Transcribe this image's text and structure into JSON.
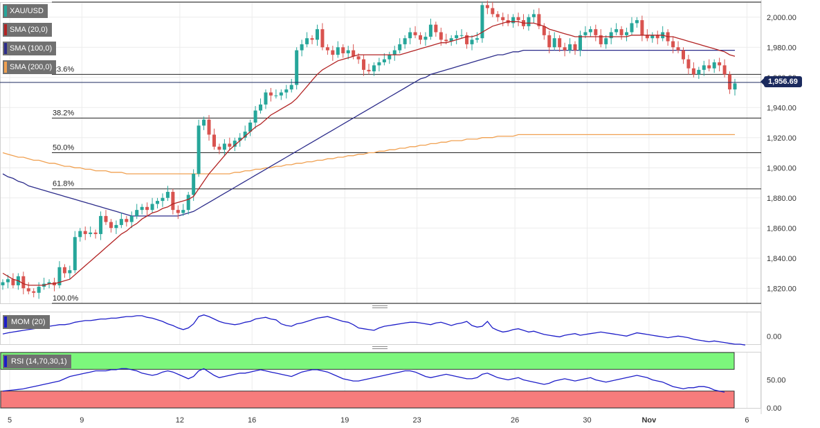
{
  "chart_data": {
    "type": "candlestick",
    "symbol": "XAU/USD",
    "y_range": [
      1810,
      2010
    ],
    "y_ticks": [
      "2,000.00",
      "1,980.00",
      "1,960.00",
      "1,940.00",
      "1,920.00",
      "1,900.00",
      "1,880.00",
      "1,860.00",
      "1,840.00",
      "1,820.00"
    ],
    "y_tick_values": [
      2000,
      1980,
      1960,
      1940,
      1920,
      1900,
      1880,
      1860,
      1840,
      1820
    ],
    "x_ticks": [
      {
        "label": "5",
        "i": 0
      },
      {
        "label": "9",
        "i": 14
      },
      {
        "label": "12",
        "i": 33
      },
      {
        "label": "16",
        "i": 47
      },
      {
        "label": "19",
        "i": 65
      },
      {
        "label": "23",
        "i": 79
      },
      {
        "label": "26",
        "i": 98
      },
      {
        "label": "30",
        "i": 112
      },
      {
        "label": "Nov",
        "i": 124
      },
      {
        "label": "6",
        "i": 143
      },
      {
        "label": "9",
        "i": 165
      }
    ],
    "last_price": 1956.69,
    "last_price_label": "1,956.69",
    "series_close": [
      1824,
      1826,
      1822,
      1828,
      1820,
      1818,
      1817,
      1821,
      1823,
      1824,
      1822,
      1834,
      1830,
      1832,
      1854,
      1858,
      1856,
      1857,
      1856,
      1868,
      1864,
      1860,
      1862,
      1866,
      1864,
      1868,
      1872,
      1874,
      1872,
      1876,
      1878,
      1880,
      1884,
      1872,
      1870,
      1872,
      1882,
      1896,
      1928,
      1932,
      1922,
      1914,
      1912,
      1916,
      1914,
      1918,
      1920,
      1924,
      1930,
      1938,
      1942,
      1950,
      1948,
      1948,
      1950,
      1952,
      1955,
      1978,
      1982,
      1986,
      1985,
      1992,
      1980,
      1978,
      1975,
      1980,
      1976,
      1978,
      1974,
      1972,
      1965,
      1964,
      1968,
      1970,
      1972,
      1975,
      1978,
      1982,
      1986,
      1990,
      1988,
      1985,
      1987,
      1995,
      1990,
      1985,
      1984,
      1986,
      1988,
      1988,
      1982,
      1985,
      1986,
      2008,
      2006,
      2002,
      2000,
      1998,
      1996,
      2000,
      1998,
      1994,
      2000,
      2002,
      1994,
      1988,
      1980,
      1986,
      1980,
      1978,
      1982,
      1978,
      1988,
      1990,
      1992,
      1988,
      1982,
      1986,
      1990,
      1992,
      1988,
      1990,
      1996,
      1998,
      1988,
      1986,
      1988,
      1986,
      1990,
      1984,
      1980,
      1978,
      1972,
      1966,
      1962,
      1965,
      1968,
      1966,
      1970,
      1968,
      1962,
      1952,
      1956
    ],
    "sma20": [
      1830,
      1828,
      1826,
      1825,
      1823,
      1822,
      1822,
      1822,
      1822,
      1823,
      1823,
      1824,
      1825,
      1826,
      1829,
      1832,
      1835,
      1838,
      1841,
      1844,
      1847,
      1850,
      1853,
      1856,
      1858,
      1861,
      1863,
      1866,
      1868,
      1870,
      1871,
      1873,
      1874,
      1876,
      1877,
      1878,
      1879,
      1881,
      1886,
      1891,
      1896,
      1900,
      1904,
      1908,
      1912,
      1915,
      1918,
      1921,
      1924,
      1927,
      1929,
      1932,
      1935,
      1937,
      1939,
      1941,
      1943,
      1946,
      1950,
      1954,
      1958,
      1962,
      1965,
      1967,
      1969,
      1971,
      1972,
      1973,
      1974,
      1975,
      1975,
      1975,
      1975,
      1975,
      1975,
      1975,
      1975,
      1975,
      1976,
      1977,
      1978,
      1979,
      1980,
      1981,
      1982,
      1983,
      1983,
      1984,
      1985,
      1986,
      1987,
      1987,
      1988,
      1990,
      1992,
      1994,
      1995,
      1996,
      1997,
      1997,
      1997,
      1996,
      1996,
      1996,
      1995,
      1994,
      1992,
      1991,
      1990,
      1989,
      1988,
      1987,
      1987,
      1987,
      1987,
      1987,
      1987,
      1987,
      1987,
      1987,
      1987,
      1987,
      1988,
      1988,
      1988,
      1988,
      1988,
      1988,
      1988,
      1987,
      1987,
      1986,
      1985,
      1984,
      1983,
      1982,
      1981,
      1980,
      1979,
      1978,
      1977,
      1975,
      1974
    ],
    "sma100": [
      1896,
      1894,
      1893,
      1891,
      1890,
      1888,
      1887,
      1886,
      1885,
      1884,
      1883,
      1882,
      1881,
      1880,
      1879,
      1878,
      1877,
      1876,
      1875,
      1874,
      1873,
      1872,
      1871,
      1870,
      1869,
      1868,
      1868,
      1868,
      1868,
      1868,
      1868,
      1868,
      1868,
      1868,
      1868,
      1869,
      1870,
      1871,
      1873,
      1875,
      1877,
      1879,
      1881,
      1883,
      1885,
      1887,
      1889,
      1891,
      1893,
      1895,
      1897,
      1899,
      1901,
      1903,
      1905,
      1907,
      1909,
      1911,
      1913,
      1915,
      1917,
      1919,
      1921,
      1923,
      1925,
      1927,
      1929,
      1931,
      1933,
      1935,
      1937,
      1939,
      1941,
      1943,
      1945,
      1947,
      1949,
      1951,
      1953,
      1955,
      1957,
      1959,
      1960,
      1962,
      1963,
      1964,
      1965,
      1966,
      1967,
      1968,
      1969,
      1970,
      1971,
      1972,
      1973,
      1974,
      1975,
      1975,
      1976,
      1977,
      1977,
      1978,
      1978,
      1978,
      1978,
      1978,
      1978,
      1978,
      1978,
      1978,
      1978,
      1978,
      1978,
      1978,
      1978,
      1978,
      1978,
      1978,
      1978,
      1978,
      1978,
      1978,
      1978,
      1978,
      1978,
      1978,
      1978,
      1978,
      1978,
      1978,
      1978,
      1978,
      1978,
      1978,
      1978,
      1978,
      1978,
      1978,
      1978,
      1978,
      1978,
      1978,
      1978
    ],
    "sma200": [
      1910,
      1909,
      1908,
      1907,
      1907,
      1906,
      1905,
      1905,
      1904,
      1903,
      1903,
      1902,
      1901,
      1901,
      1900,
      1900,
      1899,
      1899,
      1898,
      1898,
      1898,
      1897,
      1897,
      1897,
      1896,
      1896,
      1896,
      1896,
      1896,
      1896,
      1896,
      1896,
      1896,
      1896,
      1896,
      1896,
      1896,
      1896,
      1896,
      1896,
      1896,
      1896,
      1896,
      1896,
      1896,
      1897,
      1897,
      1898,
      1898,
      1899,
      1899,
      1900,
      1900,
      1901,
      1901,
      1902,
      1902,
      1903,
      1903,
      1904,
      1904,
      1905,
      1905,
      1906,
      1906,
      1907,
      1907,
      1908,
      1908,
      1909,
      1909,
      1910,
      1910,
      1911,
      1911,
      1912,
      1912,
      1913,
      1913,
      1914,
      1914,
      1915,
      1915,
      1916,
      1916,
      1917,
      1917,
      1918,
      1918,
      1918,
      1919,
      1919,
      1919,
      1920,
      1920,
      1920,
      1921,
      1921,
      1921,
      1921,
      1922,
      1922,
      1922,
      1922,
      1922,
      1922,
      1922,
      1922,
      1922,
      1922,
      1922,
      1922,
      1922,
      1922,
      1922,
      1922,
      1922,
      1922,
      1922,
      1922,
      1922,
      1922,
      1922,
      1922,
      1922,
      1922,
      1922,
      1922,
      1922,
      1922,
      1922,
      1922,
      1922,
      1922,
      1922,
      1922,
      1922,
      1922,
      1922,
      1922,
      1922,
      1922,
      1922
    ],
    "fibonacci": [
      {
        "label": "23.6%",
        "value": 1962
      },
      {
        "label": "38.2%",
        "value": 1933
      },
      {
        "label": "50.0%",
        "value": 1910
      },
      {
        "label": "61.8%",
        "value": 1886
      },
      {
        "label": "100.0%",
        "value": 1810
      }
    ],
    "legend": [
      {
        "label": "XAU/USD",
        "color": "#26a69a"
      },
      {
        "label": "SMA (20,0)",
        "color": "#b22222"
      },
      {
        "label": "SMA (100,0)",
        "color": "#2b2b8a"
      },
      {
        "label": "SMA (200,0)",
        "color": "#f0a050"
      }
    ],
    "mom": {
      "label": "MOM (20)",
      "tick_label": "0.00",
      "y_range": [
        -20,
        60
      ],
      "values": [
        5,
        8,
        10,
        12,
        14,
        16,
        18,
        20,
        22,
        24,
        26,
        28,
        28,
        30,
        34,
        36,
        38,
        38,
        40,
        42,
        42,
        44,
        44,
        46,
        48,
        48,
        50,
        50,
        46,
        44,
        40,
        36,
        30,
        26,
        20,
        16,
        20,
        30,
        48,
        52,
        48,
        42,
        36,
        32,
        30,
        28,
        30,
        34,
        36,
        42,
        44,
        46,
        42,
        40,
        30,
        26,
        24,
        30,
        32,
        36,
        40,
        44,
        46,
        48,
        44,
        40,
        36,
        34,
        28,
        20,
        18,
        16,
        14,
        20,
        24,
        26,
        28,
        30,
        32,
        34,
        34,
        32,
        30,
        28,
        32,
        34,
        30,
        26,
        30,
        32,
        36,
        26,
        22,
        24,
        36,
        20,
        14,
        10,
        12,
        16,
        18,
        14,
        10,
        12,
        8,
        4,
        2,
        0,
        -2,
        2,
        4,
        6,
        2,
        4,
        6,
        8,
        10,
        8,
        6,
        4,
        2,
        0,
        4,
        8,
        6,
        4,
        2,
        0,
        -2,
        -4,
        -2,
        0,
        -2,
        -4,
        -8,
        -10,
        -12,
        -14,
        -12,
        -14,
        -16,
        -18,
        -20,
        -20,
        -22
      ]
    },
    "rsi": {
      "label": "RSI (14,70,30,1)",
      "tick_labels": [
        "50.00",
        "0.00"
      ],
      "tick_values": [
        50,
        0
      ],
      "levels": {
        "overbought": 70,
        "oversold": 30
      },
      "values": [
        30,
        31,
        32,
        33,
        34,
        36,
        38,
        40,
        42,
        44,
        46,
        48,
        52,
        56,
        58,
        60,
        62,
        64,
        66,
        66,
        66,
        68,
        68,
        70,
        70,
        68,
        66,
        62,
        60,
        58,
        60,
        64,
        66,
        64,
        60,
        56,
        52,
        56,
        66,
        70,
        64,
        58,
        54,
        56,
        58,
        60,
        62,
        62,
        64,
        66,
        68,
        66,
        64,
        62,
        60,
        58,
        56,
        60,
        64,
        66,
        68,
        68,
        66,
        64,
        60,
        56,
        52,
        50,
        48,
        48,
        50,
        52,
        54,
        56,
        58,
        60,
        62,
        64,
        66,
        66,
        64,
        60,
        56,
        54,
        56,
        58,
        60,
        58,
        56,
        54,
        52,
        52,
        54,
        60,
        62,
        58,
        54,
        52,
        50,
        52,
        54,
        50,
        48,
        46,
        44,
        42,
        44,
        48,
        50,
        52,
        50,
        48,
        50,
        52,
        54,
        50,
        48,
        46,
        48,
        50,
        52,
        54,
        56,
        58,
        56,
        54,
        50,
        48,
        46,
        42,
        38,
        36,
        34,
        36,
        36,
        38,
        38,
        36,
        32,
        30,
        28
      ]
    }
  }
}
